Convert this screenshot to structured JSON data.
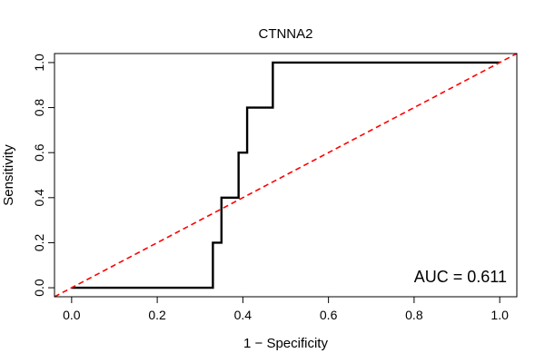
{
  "chart_data": {
    "type": "line",
    "title": "CTNNA2",
    "xlabel": "1 − Specificity",
    "ylabel": "Sensitivity",
    "xlim": [
      -0.04,
      1.04
    ],
    "ylim": [
      -0.04,
      1.04
    ],
    "x_ticks": [
      0.0,
      0.2,
      0.4,
      0.6,
      0.8,
      1.0
    ],
    "x_tick_labels": [
      "0.0",
      "0.2",
      "0.4",
      "0.6",
      "0.8",
      "1.0"
    ],
    "y_ticks": [
      0.0,
      0.2,
      0.4,
      0.6,
      0.8,
      1.0
    ],
    "y_tick_labels": [
      "0.0",
      "0.2",
      "0.4",
      "0.6",
      "0.8",
      "1.0"
    ],
    "grid": false,
    "series": [
      {
        "style": "solid",
        "color": "#000000",
        "x": [
          0.0,
          0.33,
          0.33,
          0.35,
          0.35,
          0.39,
          0.39,
          0.41,
          0.41,
          0.47,
          0.47,
          1.0
        ],
        "y": [
          0.0,
          0.0,
          0.2,
          0.2,
          0.4,
          0.4,
          0.6,
          0.6,
          0.8,
          0.8,
          1.0,
          1.0
        ]
      },
      {
        "style": "dashed",
        "color": "#ff0000",
        "x": [
          -0.04,
          1.04
        ],
        "y": [
          -0.04,
          1.04
        ]
      }
    ],
    "annotation": "AUC = 0.611"
  }
}
